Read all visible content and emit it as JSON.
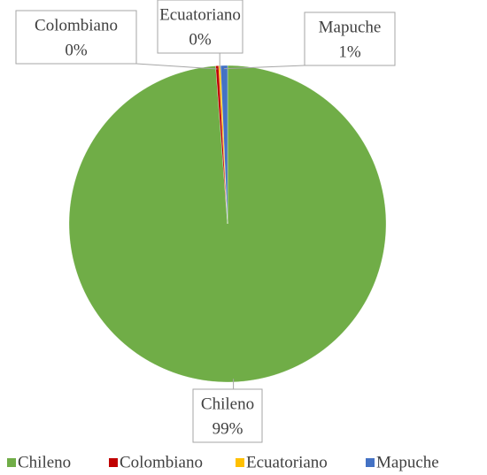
{
  "chart_data": {
    "type": "pie",
    "categories": [
      "Chileno",
      "Colombiano",
      "Ecuatoriano",
      "Mapuche"
    ],
    "values": [
      98.8,
      0.3,
      0.2,
      0.7
    ],
    "value_labels": [
      "99%",
      "0%",
      "0%",
      "1%"
    ],
    "colors": [
      "#70ad47",
      "#c00000",
      "#ffc000",
      "#4472c4"
    ],
    "legend": "bottom"
  }
}
